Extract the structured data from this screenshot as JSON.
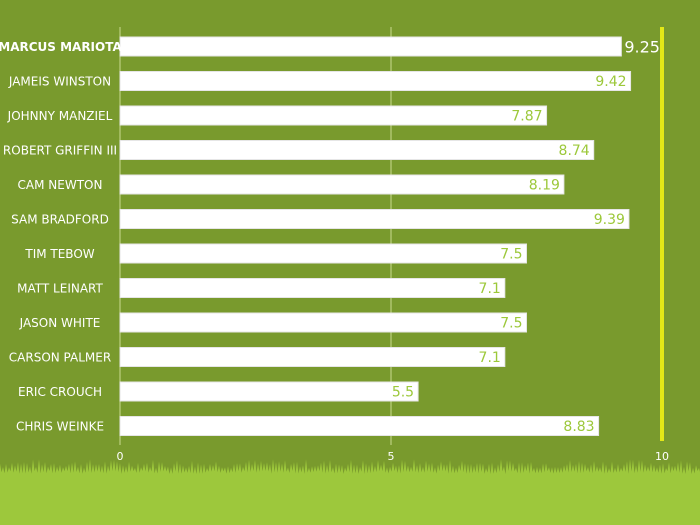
{
  "chart_data": {
    "type": "bar",
    "orientation": "horizontal",
    "title": "",
    "xlabel": "",
    "ylabel": "",
    "xlim": [
      0,
      10
    ],
    "x_ticks": [
      "0",
      "5",
      "10"
    ],
    "grid": true,
    "categories": [
      "MARCUS MARIOTA",
      "JAMEIS WINSTON",
      "JOHNNY MANZIEL",
      "ROBERT GRIFFIN III",
      "CAM NEWTON",
      "SAM BRADFORD",
      "TIM TEBOW",
      "MATT LEINART",
      "JASON WHITE",
      "CARSON PALMER",
      "ERIC CROUCH",
      "CHRIS WEINKE"
    ],
    "values": [
      9.25,
      9.42,
      7.87,
      8.74,
      8.19,
      9.39,
      7.5,
      7.1,
      7.5,
      7.1,
      5.5,
      8.83
    ],
    "value_labels": [
      "9.25",
      "9.42",
      "7.87",
      "8.74",
      "8.19",
      "9.39",
      "7.5",
      "7.1",
      "7.5",
      "7.1",
      "5.5",
      "8.83"
    ],
    "highlight_index": 0,
    "colors": {
      "background": "#799a2d",
      "grass": "#9dc83c",
      "bar": "#ffffff",
      "value_text": "#9cc83a",
      "highlight_value_text": "#ffffff",
      "category_text": "#ffffff",
      "gridline": "#c9d98f",
      "axis_tick_text": "#ffffff",
      "max_marker": "#e3e817"
    }
  }
}
